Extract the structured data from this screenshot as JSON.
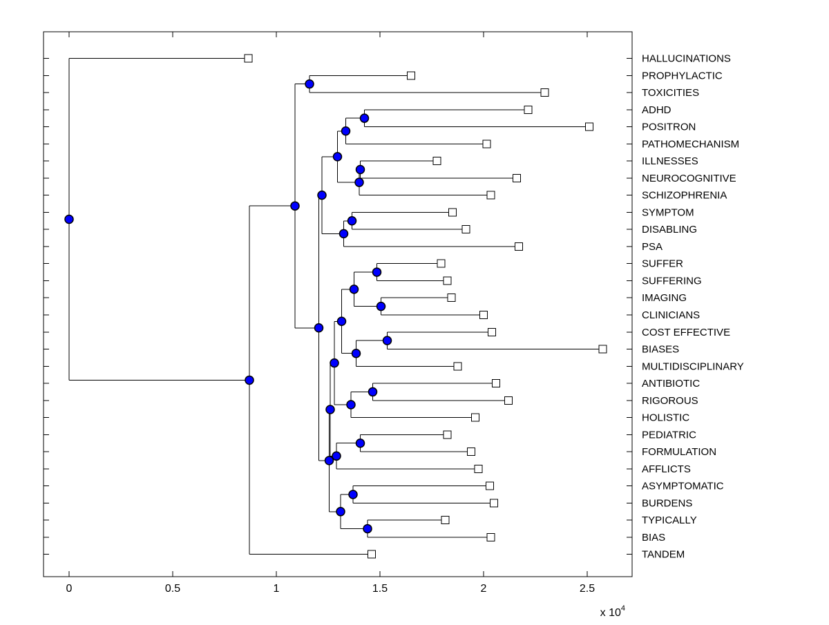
{
  "figure": {
    "background": "#ffffff",
    "line_color": "#000000",
    "axis_color": "#000000",
    "label_color": "#000000",
    "internal_node_marker": "filled-circle-icon",
    "internal_node_fill": "#0000ff",
    "internal_node_stroke": "#000000",
    "leaf_marker": "open-square-icon",
    "leaf_marker_fill": "#ffffff",
    "leaf_marker_stroke": "#000000"
  },
  "chart_data": {
    "type": "dendrogram",
    "orientation": "left-to-right",
    "title": "",
    "xlabel": "",
    "ylabel": "",
    "grid": false,
    "x_axis": {
      "tick_values": [
        0,
        5000,
        10000,
        15000,
        20000,
        25000
      ],
      "tick_labels": [
        "0",
        "0.5",
        "1",
        "1.5",
        "2",
        "2.5"
      ],
      "multiplier_label": "x 10",
      "multiplier_exponent": "4",
      "range": [
        -6000,
        27200
      ]
    },
    "leaves": [
      {
        "name": "HALLUCINATIONS",
        "marker_distance": 8650
      },
      {
        "name": "PROPHYLACTIC",
        "marker_distance": 16500
      },
      {
        "name": "TOXICITIES",
        "marker_distance": 22950
      },
      {
        "name": "ADHD",
        "marker_distance": 22150
      },
      {
        "name": "POSITRON",
        "marker_distance": 25100
      },
      {
        "name": "PATHOMECHANISM",
        "marker_distance": 20150
      },
      {
        "name": "ILLNESSES",
        "marker_distance": 17750
      },
      {
        "name": "NEUROCOGNITIVE",
        "marker_distance": 21600
      },
      {
        "name": "SCHIZOPHRENIA",
        "marker_distance": 20350
      },
      {
        "name": "SYMPTOM",
        "marker_distance": 18500
      },
      {
        "name": "DISABLING",
        "marker_distance": 19150
      },
      {
        "name": "PSA",
        "marker_distance": 21700
      },
      {
        "name": "SUFFER",
        "marker_distance": 17950
      },
      {
        "name": "SUFFERING",
        "marker_distance": 18250
      },
      {
        "name": "IMAGING",
        "marker_distance": 18450
      },
      {
        "name": "CLINICIANS",
        "marker_distance": 20000
      },
      {
        "name": "COST EFFECTIVE",
        "marker_distance": 20400
      },
      {
        "name": "BIASES",
        "marker_distance": 25750
      },
      {
        "name": "MULTIDISCIPLINARY",
        "marker_distance": 18750
      },
      {
        "name": "ANTIBIOTIC",
        "marker_distance": 20600
      },
      {
        "name": "RIGOROUS",
        "marker_distance": 21200
      },
      {
        "name": "HOLISTIC",
        "marker_distance": 19600
      },
      {
        "name": "PEDIATRIC",
        "marker_distance": 18250
      },
      {
        "name": "FORMULATION",
        "marker_distance": 19400
      },
      {
        "name": "AFFLICTS",
        "marker_distance": 19750
      },
      {
        "name": "ASYMPTOMATIC",
        "marker_distance": 20300
      },
      {
        "name": "BURDENS",
        "marker_distance": 20500
      },
      {
        "name": "TYPICALLY",
        "marker_distance": 18150
      },
      {
        "name": "BIAS",
        "marker_distance": 20350
      },
      {
        "name": "TANDEM",
        "marker_distance": 14600
      }
    ],
    "tree": {
      "d": 0,
      "c": [
        {
          "leaf": "HALLUCINATIONS"
        },
        {
          "d": 8700,
          "c": [
            {
              "d": 10900,
              "c": [
                {
                  "d": 11600,
                  "c": [
                    {
                      "leaf": "PROPHYLACTIC"
                    },
                    {
                      "leaf": "TOXICITIES"
                    }
                  ]
                },
                {
                  "d": 12050,
                  "c": [
                    {
                      "d": 12200,
                      "c": [
                        {
                          "d": 12950,
                          "c": [
                            {
                              "d": 13350,
                              "c": [
                                {
                                  "d": 14250,
                                  "c": [
                                    {
                                      "leaf": "ADHD"
                                    },
                                    {
                                      "leaf": "POSITRON"
                                    }
                                  ]
                                },
                                {
                                  "leaf": "PATHOMECHANISM"
                                }
                              ]
                            },
                            {
                              "d": 14000,
                              "c": [
                                {
                                  "d": 14050,
                                  "c": [
                                    {
                                      "leaf": "ILLNESSES"
                                    },
                                    {
                                      "leaf": "NEUROCOGNITIVE"
                                    }
                                  ]
                                },
                                {
                                  "leaf": "SCHIZOPHRENIA"
                                }
                              ]
                            }
                          ]
                        },
                        {
                          "d": 13250,
                          "c": [
                            {
                              "d": 13650,
                              "c": [
                                {
                                  "leaf": "SYMPTOM"
                                },
                                {
                                  "leaf": "DISABLING"
                                }
                              ]
                            },
                            {
                              "leaf": "PSA"
                            }
                          ]
                        }
                      ]
                    },
                    {
                      "d": 12550,
                      "c": [
                        {
                          "d": 12600,
                          "c": [
                            {
                              "d": 12800,
                              "c": [
                                {
                                  "d": 13150,
                                  "c": [
                                    {
                                      "d": 13750,
                                      "c": [
                                        {
                                          "d": 14850,
                                          "c": [
                                            {
                                              "leaf": "SUFFER"
                                            },
                                            {
                                              "leaf": "SUFFERING"
                                            }
                                          ]
                                        },
                                        {
                                          "d": 15050,
                                          "c": [
                                            {
                                              "leaf": "IMAGING"
                                            },
                                            {
                                              "leaf": "CLINICIANS"
                                            }
                                          ]
                                        }
                                      ]
                                    },
                                    {
                                      "d": 13850,
                                      "c": [
                                        {
                                          "d": 15350,
                                          "c": [
                                            {
                                              "leaf": "COST EFFECTIVE"
                                            },
                                            {
                                              "leaf": "BIASES"
                                            }
                                          ]
                                        },
                                        {
                                          "leaf": "MULTIDISCIPLINARY"
                                        }
                                      ]
                                    }
                                  ]
                                },
                                {
                                  "d": 13600,
                                  "c": [
                                    {
                                      "d": 14650,
                                      "c": [
                                        {
                                          "leaf": "ANTIBIOTIC"
                                        },
                                        {
                                          "leaf": "RIGOROUS"
                                        }
                                      ]
                                    },
                                    {
                                      "leaf": "HOLISTIC"
                                    }
                                  ]
                                }
                              ]
                            },
                            {
                              "d": 12900,
                              "c": [
                                {
                                  "d": 14050,
                                  "c": [
                                    {
                                      "leaf": "PEDIATRIC"
                                    },
                                    {
                                      "leaf": "FORMULATION"
                                    }
                                  ]
                                },
                                {
                                  "leaf": "AFFLICTS"
                                }
                              ]
                            }
                          ]
                        },
                        {
                          "d": 13100,
                          "c": [
                            {
                              "d": 13700,
                              "c": [
                                {
                                  "leaf": "ASYMPTOMATIC"
                                },
                                {
                                  "leaf": "BURDENS"
                                }
                              ]
                            },
                            {
                              "d": 14400,
                              "c": [
                                {
                                  "leaf": "TYPICALLY"
                                },
                                {
                                  "leaf": "BIAS"
                                }
                              ]
                            }
                          ]
                        }
                      ]
                    }
                  ]
                }
              ]
            },
            {
              "leaf": "TANDEM"
            }
          ]
        }
      ]
    }
  }
}
